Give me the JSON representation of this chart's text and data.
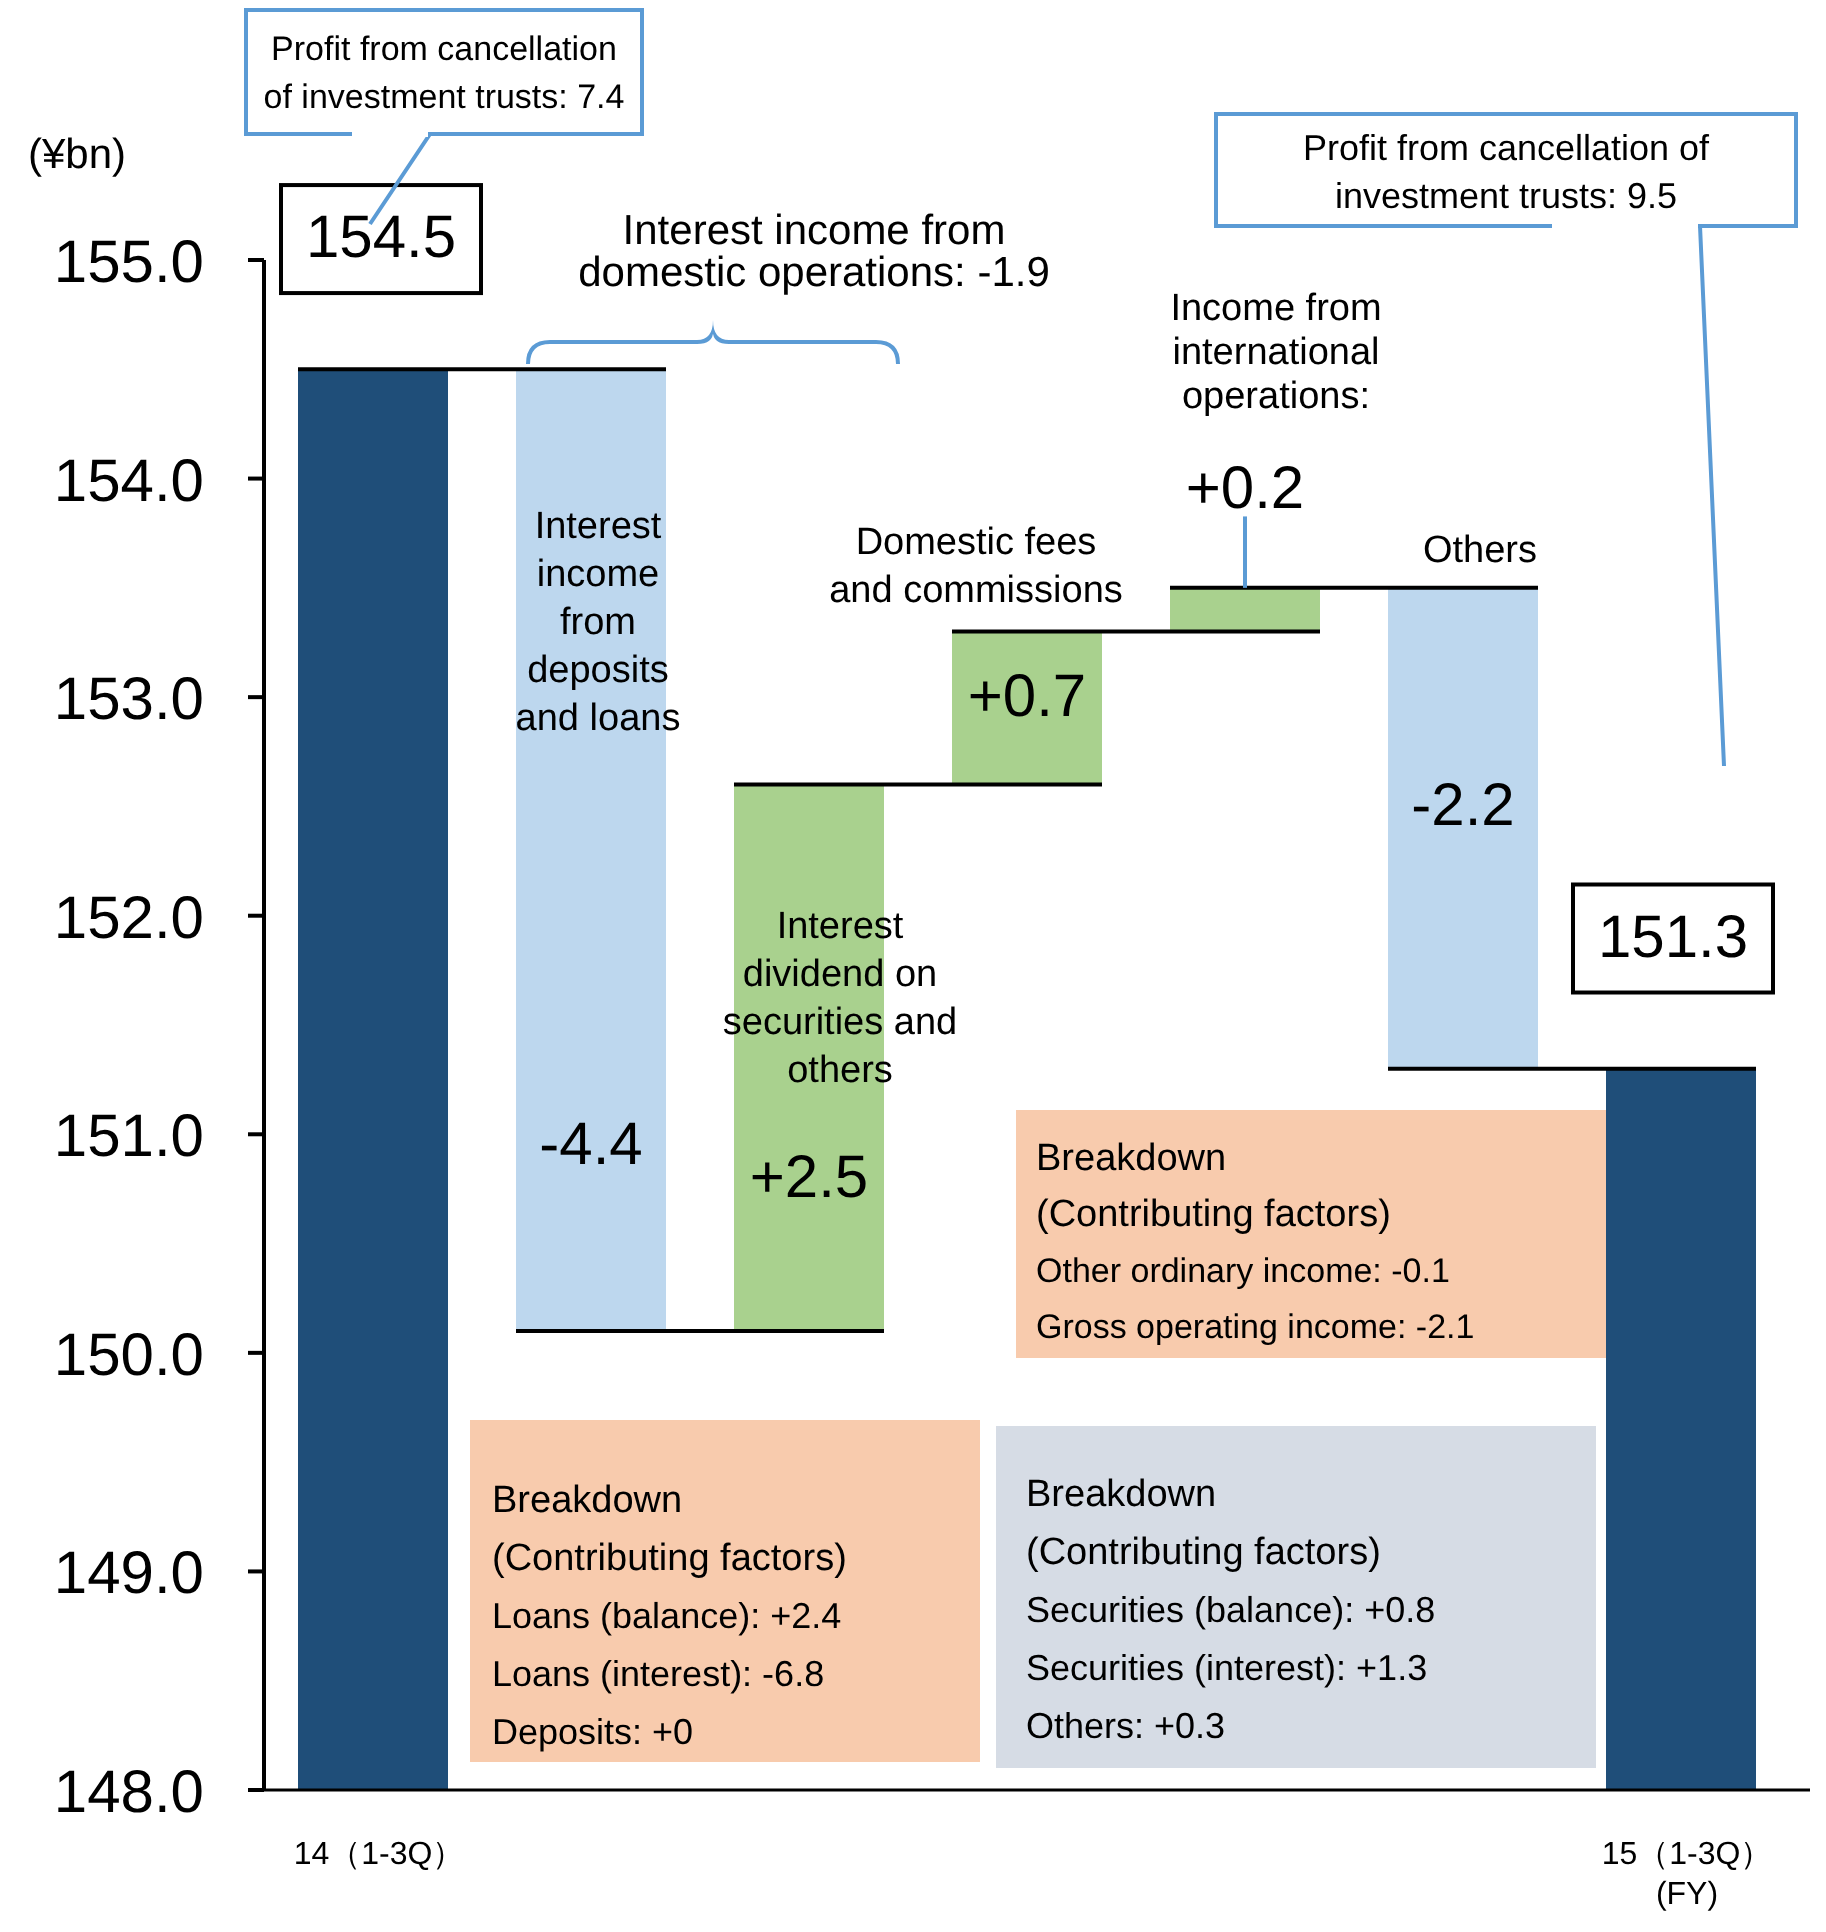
{
  "chart_data": {
    "type": "bar",
    "ylabel": "(¥bn)",
    "categories": [
      "14（1-3Q）",
      null,
      null,
      null,
      null,
      null,
      "15（1-3Q）\n(FY)"
    ],
    "base": [
      148,
      154.5,
      150.1,
      152.6,
      153.3,
      153.5,
      148
    ],
    "values": [
      6.5,
      -4.4,
      2.5,
      0.7,
      0.2,
      -2.2,
      3.3
    ],
    "colors": [
      "#1f4e79",
      "#bdd7ee",
      "#a9d18e",
      "#a9d18e",
      "#a9d18e",
      "#bdd7ee",
      "#1f4e79"
    ],
    "value_labels": [
      "154.5",
      "-4.4",
      "+2.5",
      "+0.7",
      "+0.2",
      "-2.2",
      "151.3"
    ],
    "ylim": [
      148,
      155
    ],
    "yticks": [
      {
        "value": 148,
        "label": "148.0"
      },
      {
        "value": 149,
        "label": "149.0"
      },
      {
        "value": 150,
        "label": "150.0"
      },
      {
        "value": 151,
        "label": "151.0"
      },
      {
        "value": 152,
        "label": "152.0"
      },
      {
        "value": 153,
        "label": "153.0"
      },
      {
        "value": 154,
        "label": "154.0"
      },
      {
        "value": 155,
        "label": "155.0"
      }
    ],
    "annotations": [
      "Profit from cancellation\nof investment trusts: 7.4",
      "Interest income from\ndomestic operations: -1.9",
      "Interest\nincome\nfrom\ndeposits\nand loans",
      "Interest\ndividend on\nsecurities and\nothers",
      {
        "text": "Domestic fees\nand commissions",
        "y": 153.3
      },
      "Income from\ninternational\noperations:",
      {
        "text": "Others",
        "y": 153.5
      },
      "Profit from cancellation of\ninvestment trusts: 9.5",
      "Breakdown\n(Contributing factors)\nLoans (balance): +2.4\nLoans (interest): -6.8\nDeposits: +0",
      "Breakdown\n(Contributing factors)\nSecurities (balance): +0.8\nSecurities (interest): +1.3\nOthers: +0.3",
      "Breakdown\n(Contributing factors)\nOther ordinary income: -0.1\nGross operating income: -2.1"
    ]
  }
}
